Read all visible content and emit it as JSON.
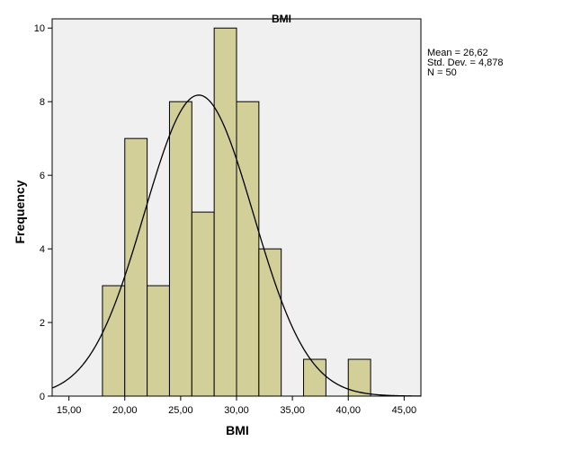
{
  "chart_data": {
    "type": "bar",
    "title": "BMI",
    "xlabel": "BMI",
    "ylabel": "Frequency",
    "xlim": [
      13.5,
      46.5
    ],
    "ylim": [
      0,
      10.25
    ],
    "x_ticks": [
      15,
      20,
      25,
      30,
      35,
      40,
      45
    ],
    "x_tick_labels": [
      "15,00",
      "20,00",
      "25,00",
      "30,00",
      "35,00",
      "40,00",
      "45,00"
    ],
    "y_ticks": [
      0,
      2,
      4,
      6,
      8,
      10
    ],
    "y_tick_labels": [
      "0",
      "2",
      "4",
      "6",
      "8",
      "10"
    ],
    "bins": [
      {
        "x0": 18,
        "x1": 20,
        "count": 3
      },
      {
        "x0": 20,
        "x1": 22,
        "count": 7
      },
      {
        "x0": 22,
        "x1": 24,
        "count": 3
      },
      {
        "x0": 24,
        "x1": 26,
        "count": 8
      },
      {
        "x0": 26,
        "x1": 28,
        "count": 5
      },
      {
        "x0": 28,
        "x1": 30,
        "count": 10
      },
      {
        "x0": 30,
        "x1": 32,
        "count": 8
      },
      {
        "x0": 32,
        "x1": 34,
        "count": 4
      },
      {
        "x0": 36,
        "x1": 38,
        "count": 1
      },
      {
        "x0": 40,
        "x1": 42,
        "count": 1
      }
    ],
    "normal_curve": {
      "mean": 26.62,
      "sd": 4.878,
      "n": 50,
      "bin_width": 2
    },
    "stats_labels": [
      "Mean = 26,62",
      "Std. Dev. = 4,878",
      "N = 50"
    ],
    "colors": {
      "bar_fill": "#d3cf99",
      "bar_stroke": "#000000",
      "plot_bg": "#f0f0f0",
      "curve": "#000000"
    },
    "grid": false,
    "legend": "none"
  }
}
